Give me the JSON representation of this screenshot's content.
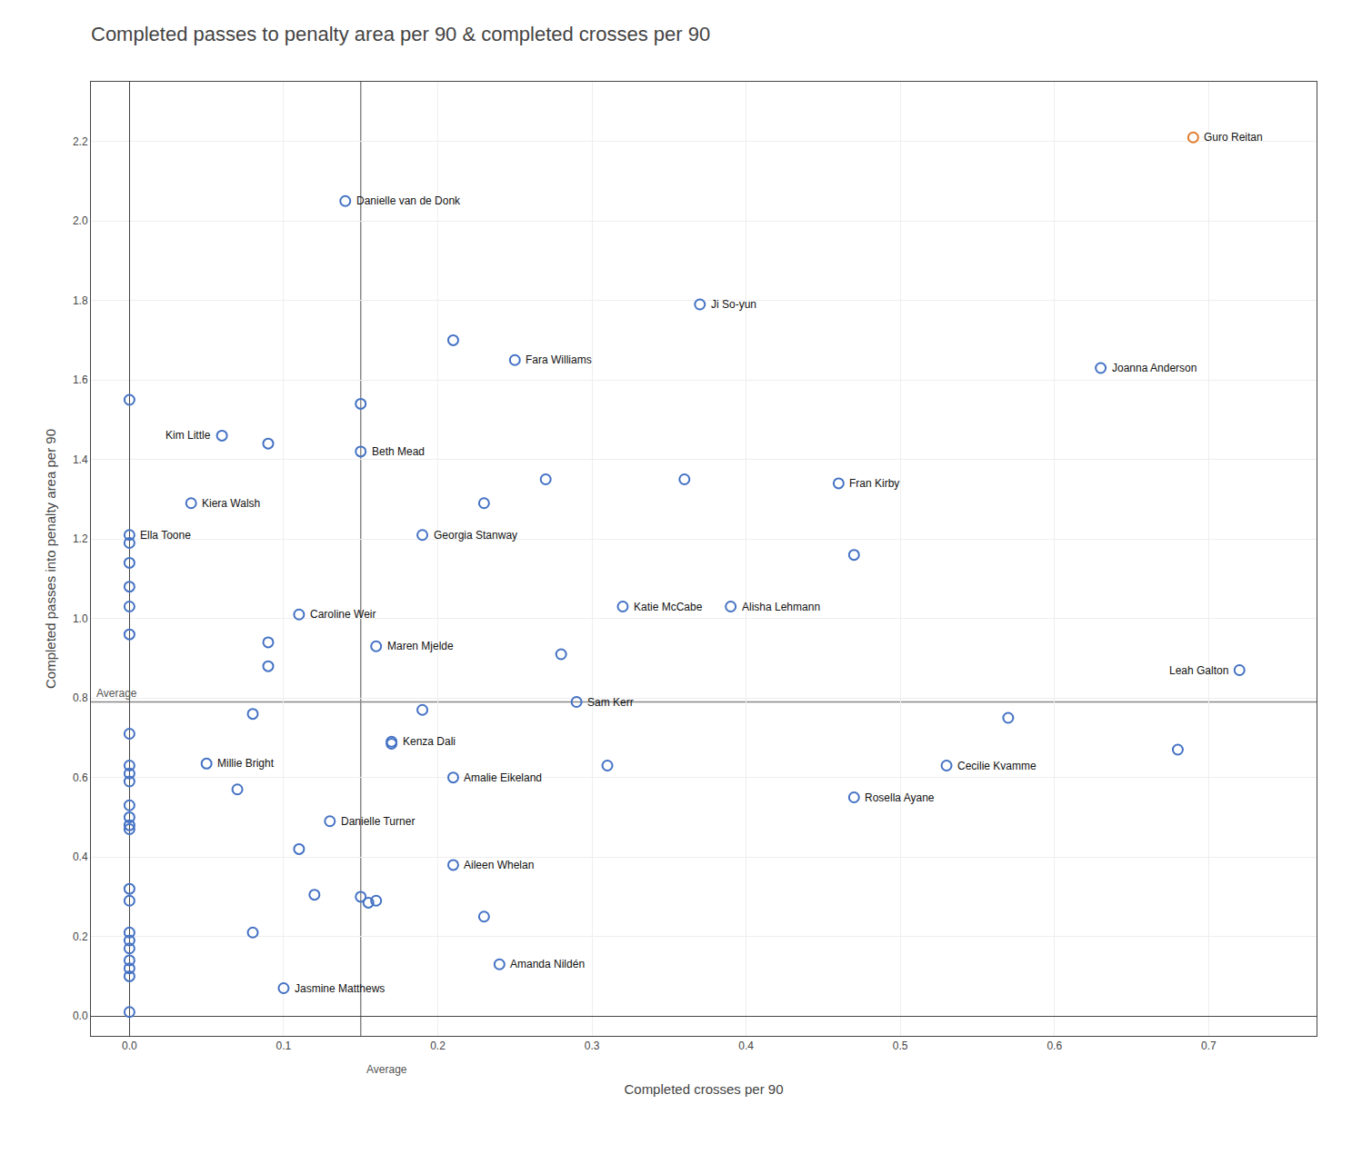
{
  "chart_data": {
    "type": "scatter",
    "title": "Completed passes to penalty area per 90 & completed crosses per 90",
    "xlabel": "Completed crosses per 90",
    "ylabel": "Completed passes into penalty area per 90",
    "xlim": [
      -0.025,
      0.77
    ],
    "ylim": [
      -0.05,
      2.35
    ],
    "xticks": [
      {
        "value": 0.0,
        "label": "0.0"
      },
      0.1,
      0.2,
      0.3,
      0.4,
      0.5,
      0.6,
      0.7
    ],
    "yticks": [
      {
        "value": 0.0,
        "label": "0.0"
      },
      0.2,
      0.4,
      0.6,
      0.8,
      {
        "value": 1.0,
        "label": "1.0"
      },
      1.2,
      1.4,
      1.6,
      1.8,
      {
        "value": 2.0,
        "label": "2.0"
      },
      2.2
    ],
    "grid": true,
    "marker": "circle-open",
    "reference_lines": [
      {
        "axis": "y",
        "value": 0.79,
        "label": "Average"
      },
      {
        "axis": "x",
        "value": 0.15,
        "label": "Average"
      }
    ],
    "x": [
      0.69,
      0.14,
      0.37,
      0.21,
      0.25,
      0.63,
      0.0,
      0.15,
      0.06,
      0.09,
      0.15,
      0.04,
      0.27,
      0.36,
      0.46,
      0.23,
      0.19,
      0.47,
      0.0,
      0.0,
      0.0,
      0.0,
      0.0,
      0.11,
      0.32,
      0.39,
      0.0,
      0.09,
      0.16,
      0.28,
      0.09,
      0.72,
      0.29,
      0.08,
      0.19,
      0.57,
      0.17,
      0.17,
      0.68,
      0.0,
      0.05,
      0.0,
      0.53,
      0.21,
      0.31,
      0.0,
      0.0,
      0.07,
      0.47,
      0.0,
      0.0,
      0.0,
      0.0,
      0.13,
      0.11,
      0.21,
      0.0,
      0.0,
      0.12,
      0.15,
      0.155,
      0.16,
      0.23,
      0.0,
      0.08,
      0.0,
      0.0,
      0.0,
      0.0,
      0.0,
      0.24,
      0.1,
      0.0
    ],
    "values": [
      2.21,
      2.05,
      1.79,
      1.7,
      1.65,
      1.63,
      1.55,
      1.54,
      1.46,
      1.44,
      1.42,
      1.29,
      1.35,
      1.35,
      1.34,
      1.29,
      1.21,
      1.16,
      1.21,
      1.19,
      1.14,
      1.08,
      1.03,
      1.01,
      1.03,
      1.03,
      0.96,
      0.94,
      0.93,
      0.91,
      0.88,
      0.87,
      0.79,
      0.76,
      0.77,
      0.75,
      0.69,
      0.685,
      0.67,
      0.71,
      0.635,
      0.63,
      0.63,
      0.6,
      0.63,
      0.61,
      0.59,
      0.57,
      0.55,
      0.53,
      0.5,
      0.48,
      0.47,
      0.49,
      0.42,
      0.38,
      0.32,
      0.29,
      0.305,
      0.3,
      0.285,
      0.29,
      0.25,
      0.21,
      0.21,
      0.19,
      0.17,
      0.14,
      0.12,
      0.1,
      0.13,
      0.07,
      0.01
    ],
    "point_labels": [
      "Guro Reitan",
      "Danielle van de Donk",
      "Ji So-yun",
      null,
      "Fara Williams",
      "Joanna Anderson",
      null,
      null,
      "Kim Little",
      null,
      "Beth Mead",
      "Kiera Walsh",
      null,
      null,
      "Fran Kirby",
      null,
      "Georgia Stanway",
      null,
      "Ella Toone",
      null,
      null,
      null,
      null,
      "Caroline Weir",
      "Katie McCabe",
      "Alisha Lehmann",
      null,
      null,
      "Maren Mjelde",
      null,
      null,
      "Leah Galton",
      "Sam Kerr",
      null,
      null,
      null,
      "Kenza Dali",
      null,
      null,
      null,
      "Millie Bright",
      null,
      "Cecilie Kvamme",
      "Amalie Eikeland",
      null,
      null,
      null,
      null,
      "Rosella Ayane",
      null,
      null,
      null,
      null,
      "Danielle Turner",
      null,
      "Aileen Whelan",
      null,
      null,
      null,
      null,
      null,
      null,
      null,
      null,
      null,
      null,
      null,
      null,
      null,
      null,
      "Amanda Nildén",
      "Jasmine Matthews",
      null
    ],
    "colors": [
      "#e07b2a",
      "#4472c4",
      "#4472c4",
      "#4472c4",
      "#4472c4",
      "#4472c4",
      "#4472c4",
      "#4472c4",
      "#4472c4",
      "#4472c4",
      "#4472c4",
      "#4472c4",
      "#4472c4",
      "#4472c4",
      "#4472c4",
      "#4472c4",
      "#4472c4",
      "#4472c4",
      "#4472c4",
      "#4472c4",
      "#4472c4",
      "#4472c4",
      "#4472c4",
      "#4472c4",
      "#4472c4",
      "#4472c4",
      "#4472c4",
      "#4472c4",
      "#4472c4",
      "#4472c4",
      "#4472c4",
      "#4472c4",
      "#4472c4",
      "#4472c4",
      "#4472c4",
      "#4472c4",
      "#4472c4",
      "#4472c4",
      "#4472c4",
      "#4472c4",
      "#4472c4",
      "#4472c4",
      "#4472c4",
      "#4472c4",
      "#4472c4",
      "#4472c4",
      "#4472c4",
      "#4472c4",
      "#4472c4",
      "#4472c4",
      "#4472c4",
      "#4472c4",
      "#4472c4",
      "#4472c4",
      "#4472c4",
      "#4472c4",
      "#4472c4",
      "#4472c4",
      "#4472c4",
      "#4472c4",
      "#4472c4",
      "#4472c4",
      "#4472c4",
      "#4472c4",
      "#4472c4",
      "#4472c4",
      "#4472c4",
      "#4472c4",
      "#4472c4",
      "#4472c4",
      "#4472c4",
      "#4472c4",
      "#4472c4"
    ]
  }
}
